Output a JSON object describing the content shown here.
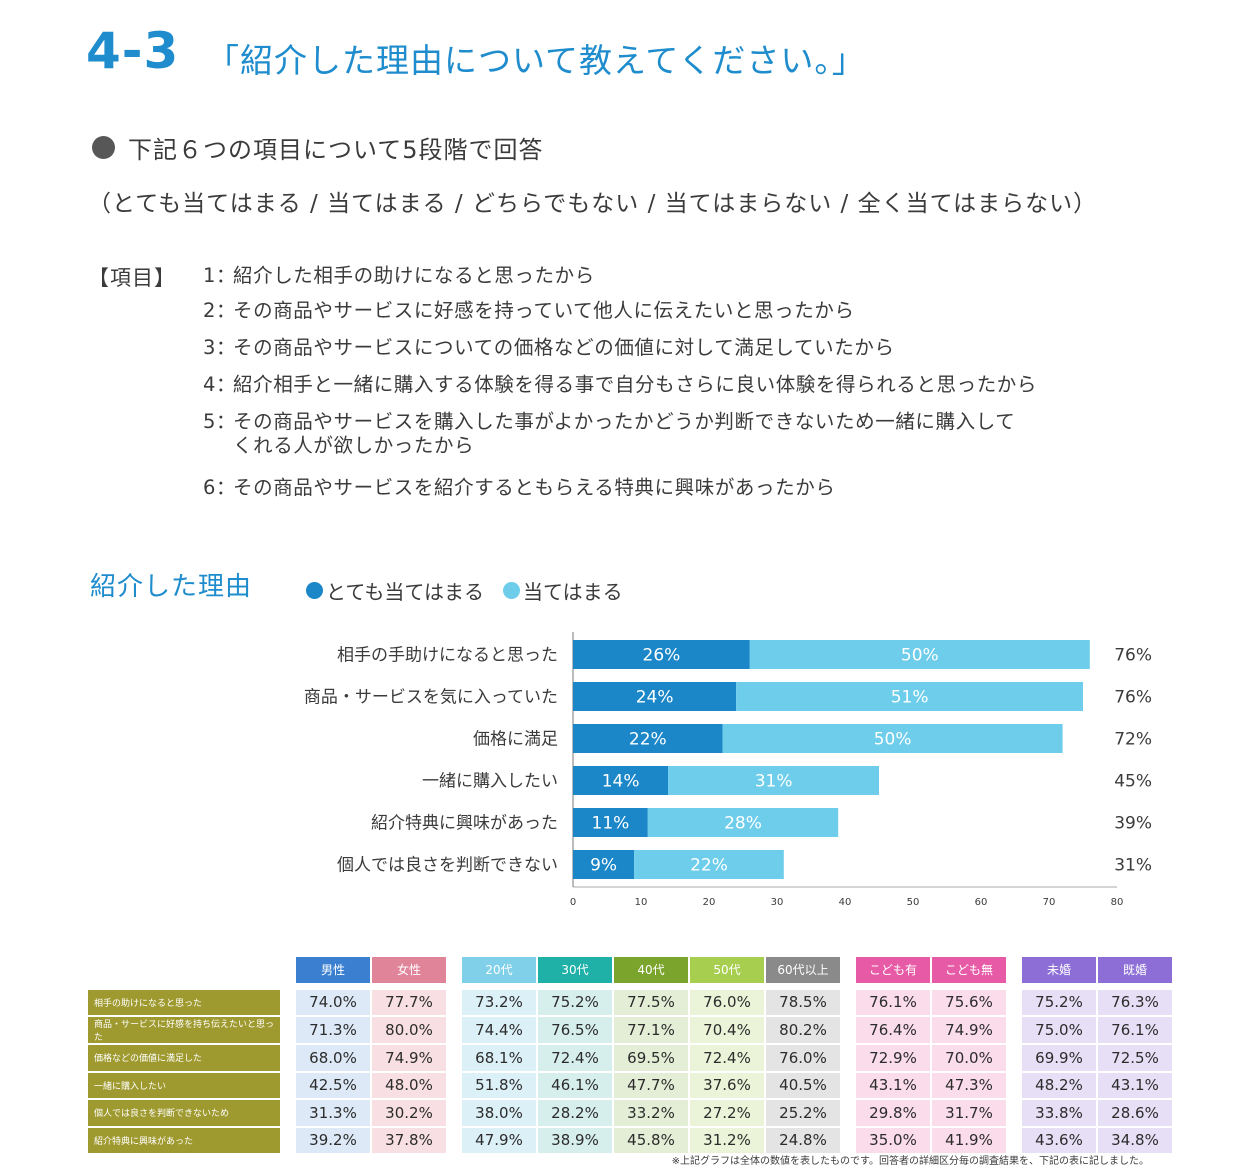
{
  "header": {
    "number": "4-3",
    "question": "「紹介した理由について教えてください。」"
  },
  "intro": {
    "subheading": "下記６つの項目について5段階で回答",
    "scale_text": "（とても当てはまる / 当てはまる / どちらでもない / 当てはまらない / 全く当てはまらない）",
    "items_label": "【項目】",
    "items": [
      {
        "num": "1：",
        "text": "紹介した相手の助けになると思ったから"
      },
      {
        "num": "2：",
        "text": "その商品やサービスに好感を持っていて他人に伝えたいと思ったから"
      },
      {
        "num": "3：",
        "text": "その商品やサービスについての価格などの価値に対して満足していたから"
      },
      {
        "num": "4：",
        "text": "紹介相手と一緒に購入する体験を得る事で自分もさらに良い体験を得られると思ったから"
      },
      {
        "num": "5：",
        "text": "その商品やサービスを購入した事がよかったかどうか判断できないため一緒に購入して",
        "text2": "くれる人が欲しかったから"
      },
      {
        "num": "6：",
        "text": "その商品やサービスを紹介するともらえる特典に興味があったから"
      }
    ]
  },
  "chart_data": {
    "type": "bar",
    "orientation": "horizontal",
    "stacked": true,
    "title": "紹介した理由",
    "categories": [
      "相手の手助けになると思った",
      "商品・サービスを気に入っていた",
      "価格に満足",
      "一緒に購入したい",
      "紹介特典に興味があった",
      "個人では良さを判断できない"
    ],
    "series": [
      {
        "name": "とても当てはまる",
        "color": "#1b87c9",
        "values": [
          26,
          24,
          22,
          14,
          11,
          9
        ]
      },
      {
        "name": "当てはまる",
        "color": "#6dcdea",
        "values": [
          50,
          51,
          50,
          31,
          28,
          22
        ]
      }
    ],
    "totals": [
      76,
      76,
      72,
      45,
      39,
      31
    ],
    "value_suffix": "%",
    "xlim": [
      0,
      80
    ],
    "xticks": [
      0,
      10,
      20,
      30,
      40,
      50,
      60,
      70,
      80
    ],
    "legend_position": "top",
    "grid": false
  },
  "table": {
    "groups": [
      {
        "columns": [
          "男性",
          "女性"
        ],
        "header_colors": [
          "#3a7fd0",
          "#e0849a"
        ],
        "cell_colors": [
          "#dde9f7",
          "#f8dfe3"
        ]
      },
      {
        "columns": [
          "20代",
          "30代",
          "40代",
          "50代",
          "60代以上"
        ],
        "header_colors": [
          "#7fd0e8",
          "#1fb1a8",
          "#7aa42c",
          "#a7ce4f",
          "#8a8a8a"
        ],
        "cell_colors": [
          "#dcf0f7",
          "#d7efec",
          "#e4edd5",
          "#ebf3d8",
          "#e4e4e4"
        ]
      },
      {
        "columns": [
          "こども有",
          "こども無"
        ],
        "header_colors": [
          "#e65aa6",
          "#e65aa6"
        ],
        "cell_colors": [
          "#fadcea",
          "#fadcea"
        ]
      },
      {
        "columns": [
          "未婚",
          "既婚"
        ],
        "header_colors": [
          "#8c6ed6",
          "#8c6ed6"
        ],
        "cell_colors": [
          "#e6dff6",
          "#e6dff6"
        ]
      }
    ],
    "rows": [
      {
        "label": "相手の助けになると思った",
        "values": [
          "74.0%",
          "77.7%",
          "73.2%",
          "75.2%",
          "77.5%",
          "76.0%",
          "78.5%",
          "76.1%",
          "75.6%",
          "75.2%",
          "76.3%"
        ]
      },
      {
        "label": "商品・サービスに好感を持ち伝えたいと思った",
        "values": [
          "71.3%",
          "80.0%",
          "74.4%",
          "76.5%",
          "77.1%",
          "70.4%",
          "80.2%",
          "76.4%",
          "74.9%",
          "75.0%",
          "76.1%"
        ]
      },
      {
        "label": "価格などの価値に満足した",
        "values": [
          "68.0%",
          "74.9%",
          "68.1%",
          "72.4%",
          "69.5%",
          "72.4%",
          "76.0%",
          "72.9%",
          "70.0%",
          "69.9%",
          "72.5%"
        ]
      },
      {
        "label": "一緒に購入したい",
        "values": [
          "42.5%",
          "48.0%",
          "51.8%",
          "46.1%",
          "47.7%",
          "37.6%",
          "40.5%",
          "43.1%",
          "47.3%",
          "48.2%",
          "43.1%"
        ]
      },
      {
        "label": "個人では良さを判断できないため",
        "values": [
          "31.3%",
          "30.2%",
          "38.0%",
          "28.2%",
          "33.2%",
          "27.2%",
          "25.2%",
          "29.8%",
          "31.7%",
          "33.8%",
          "28.6%"
        ]
      },
      {
        "label": "紹介特典に興味があった",
        "values": [
          "39.2%",
          "37.8%",
          "47.9%",
          "38.9%",
          "45.8%",
          "31.2%",
          "24.8%",
          "35.0%",
          "41.9%",
          "43.6%",
          "34.8%"
        ]
      }
    ],
    "row_label_color": "#9f9a2f"
  },
  "footnote": "※上記グラフは全体の数値を表したものです。回答者の詳細区分毎の調査結果を、下記の表に記しました。"
}
